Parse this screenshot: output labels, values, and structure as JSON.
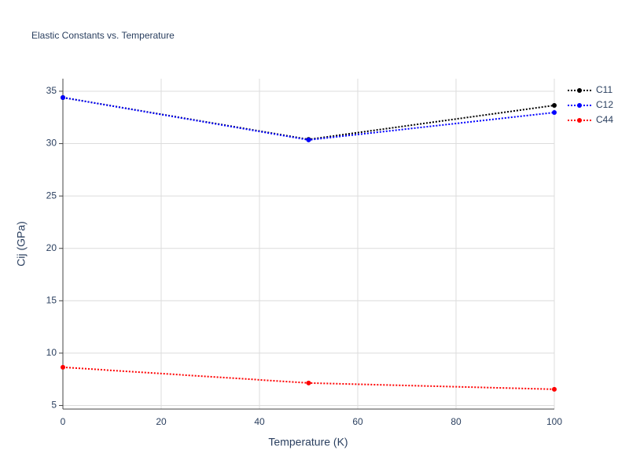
{
  "chart_data": {
    "type": "line",
    "title": "Elastic Constants vs. Temperature",
    "x_label": "Temperature (K)",
    "y_label": "Cij (GPa)",
    "x": [
      0,
      50,
      100
    ],
    "series": [
      {
        "name": "C11",
        "color": "#000000",
        "values": [
          34.4,
          30.4,
          33.65
        ]
      },
      {
        "name": "C12",
        "color": "#0000ff",
        "values": [
          34.4,
          30.35,
          32.97
        ]
      },
      {
        "name": "C44",
        "color": "#ff0000",
        "values": [
          8.65,
          7.15,
          6.55
        ]
      }
    ],
    "xlim": [
      0,
      100
    ],
    "xticks": [
      0,
      20,
      40,
      60,
      80,
      100
    ],
    "ylim": [
      4.66,
      36.2
    ],
    "yticks": [
      5,
      10,
      15,
      20,
      25,
      30,
      35
    ],
    "grid": true,
    "legend": "right",
    "line_style": "dotted"
  }
}
